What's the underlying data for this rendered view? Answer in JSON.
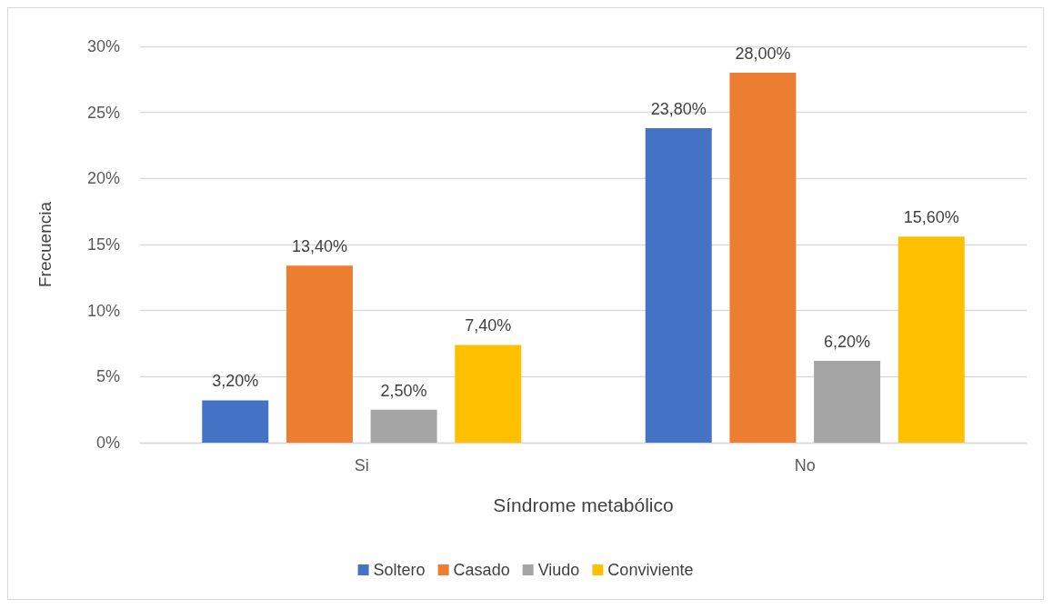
{
  "chart_data": {
    "type": "bar",
    "xlabel": "Síndrome metabólico",
    "ylabel": "Frecuencia",
    "categories": [
      "Si",
      "No"
    ],
    "series": [
      {
        "name": "Soltero",
        "color": "#4472c4",
        "values": [
          3.2,
          23.8
        ],
        "value_labels": [
          "3,20%",
          "23,80%"
        ]
      },
      {
        "name": "Casado",
        "color": "#ed7d31",
        "values": [
          13.4,
          28.0
        ],
        "value_labels": [
          "13,40%",
          "28,00%"
        ]
      },
      {
        "name": "Viudo",
        "color": "#a5a5a5",
        "values": [
          2.5,
          6.2
        ],
        "value_labels": [
          "2,50%",
          "6,20%"
        ]
      },
      {
        "name": "Conviviente",
        "color": "#ffc000",
        "values": [
          7.4,
          15.6
        ],
        "value_labels": [
          "7,40%",
          "15,60%"
        ]
      }
    ],
    "ylim": [
      0,
      30
    ],
    "yticks": [
      {
        "value": 0,
        "label": "0%"
      },
      {
        "value": 5,
        "label": "5%"
      },
      {
        "value": 10,
        "label": "10%"
      },
      {
        "value": 15,
        "label": "15%"
      },
      {
        "value": 20,
        "label": "20%"
      },
      {
        "value": 25,
        "label": "25%"
      },
      {
        "value": 30,
        "label": "30%"
      }
    ],
    "grid": "y",
    "legend": "bottom"
  }
}
